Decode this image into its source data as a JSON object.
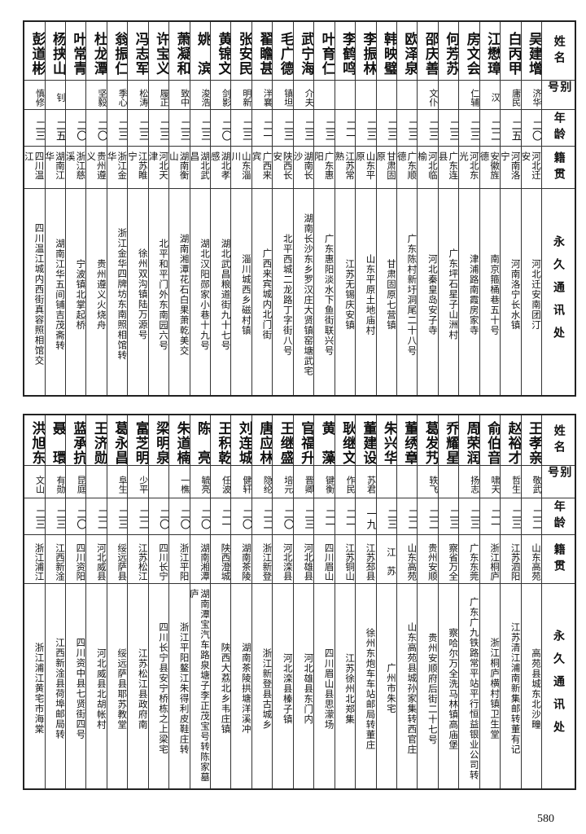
{
  "headers": {
    "name": "姓名",
    "alias": "别号",
    "age": "年龄",
    "hometown": "籍贯",
    "address": "永久通讯处"
  },
  "page_number": "580",
  "top_table": [
    {
      "name": "吴建增",
      "alias": "济华",
      "age": "二〇",
      "hometown": "河北迁安",
      "address": "河北迁安南团汀"
    },
    {
      "name": "白丙甲",
      "alias": "庸民",
      "age": "二五",
      "hometown": "河南洛宁",
      "address": "河南洛宁长水镇"
    },
    {
      "name": "江懋璋",
      "alias": "汉",
      "age": "二二",
      "hometown": "安徽旌德",
      "address": "南京箍桶巷五十号"
    },
    {
      "name": "房文会",
      "alias": "仁辅",
      "age": "二三",
      "hometown": "河北东光",
      "address": "津浦路南霞房家寺"
    },
    {
      "name": "何芳苏",
      "alias": "",
      "age": "二三",
      "hometown": "广东连县",
      "address": "广东坪石星子山洲村"
    },
    {
      "name": "邵庆善",
      "alias": "文仆",
      "age": "二三",
      "hometown": "河北临榆",
      "address": "河北秦皇岛安子寺"
    },
    {
      "name": "欧泽泉",
      "alias": "",
      "age": "二三",
      "hometown": "广东顺德",
      "address": "广东陈村新圩洞尾二十八号"
    },
    {
      "name": "韩映璧",
      "alias": "",
      "age": "二三",
      "hometown": "甘肃固原",
      "address": "甘肃固原七营镇"
    },
    {
      "name": "李振林",
      "alias": "",
      "age": "二三",
      "hometown": "山东平原",
      "address": "山东平原土地庙村"
    },
    {
      "name": "李鹤鸣",
      "alias": "",
      "age": "二一",
      "hometown": "江苏常熟",
      "address": "江苏无锡庆安镇"
    },
    {
      "name": "叶育仁",
      "alias": "",
      "age": "二三",
      "hometown": "广东惠阳",
      "address": "广东惠阳淡水下鱼街联兴号"
    },
    {
      "name": "武宁海",
      "alias": "介夫",
      "age": "二三",
      "hometown": "湖南长沙",
      "address": "湖南长沙东乡罗汉庄大贤镇窑塘武宅"
    },
    {
      "name": "毛广德",
      "alias": "镇坦",
      "age": "二三",
      "hometown": "陕西长安",
      "address": "北平西城二龙路丁字街八号"
    },
    {
      "name": "翟瞻甚",
      "alias": "泮襄",
      "age": "二一",
      "hometown": "广西来宾",
      "address": "广西来宾城内北门街"
    },
    {
      "name": "张安民",
      "alias": "明新",
      "age": "二三",
      "hometown": "山东淄川",
      "address": "淄川城西乡磁村镇"
    },
    {
      "name": "黄锦文",
      "alias": "剑影",
      "age": "二〇",
      "hometown": "湖北孝感",
      "address": "湖北武昌粮道街九十七号"
    },
    {
      "name": "姚　滨",
      "alias": "浚浩",
      "age": "二三",
      "hometown": "湖北武昌",
      "address": "湖北汉阳郧家小巷十九号"
    },
    {
      "name": "萧凝和",
      "alias": "致中",
      "age": "二三",
      "hometown": "湖南衡山",
      "address": "湖南湘潭花石白果萧乾美交"
    },
    {
      "name": "许宝义",
      "alias": "履正",
      "age": "二三",
      "hometown": "河北天津",
      "address": "北平和平门外东南园六号"
    },
    {
      "name": "冯志军",
      "alias": "松涛",
      "age": "二三",
      "hometown": "江苏睢宁",
      "address": "徐州双沟镇陆万源号"
    },
    {
      "name": "翁振仁",
      "alias": "季心",
      "age": "二三",
      "hometown": "浙江金华",
      "address": "浙江金华四牌坊东南照相馆转"
    },
    {
      "name": "杜龙潭",
      "alias": "坚毅",
      "age": "二〇",
      "hometown": "贵州遵义",
      "address": "贵州遵义火烧舟"
    },
    {
      "name": "叶常青",
      "alias": "",
      "age": "二〇",
      "hometown": "浙江慈溪",
      "address": "宁波镇北掌起桥"
    },
    {
      "name": "杨挟山",
      "alias": "钊",
      "age": "二五",
      "hometown": "湖南江华",
      "address": "湖南江华五间铺吉茂斋转"
    },
    {
      "name": "彭道彬",
      "alias": "慎修",
      "age": "二三",
      "hometown": "四川温江",
      "address": "四川温江城内西街真容照相馆交"
    }
  ],
  "bottom_table": [
    {
      "name": "王孝亲",
      "alias": "敬武",
      "age": "二二",
      "hometown": "山东高苑",
      "address": "高苑县城东北沙疃"
    },
    {
      "name": "赵裕才",
      "alias": "哲生",
      "age": "二三",
      "hometown": "江苏泗阳",
      "address": "江苏清江浦南新集邮转董有记"
    },
    {
      "name": "俞伯音",
      "alias": "啸天",
      "age": "二一",
      "hometown": "浙江桐庐",
      "address": "浙江桐庐横村镇卫生堂"
    },
    {
      "name": "周荣润",
      "alias": "扬志",
      "age": "二三",
      "hometown": "广东东莞",
      "address": "广东广九铁路常平站平行恒益银业公司转"
    },
    {
      "name": "乔耀星",
      "alias": "",
      "age": "二三",
      "hometown": "察省万全",
      "address": "察哈尔万全洗马林镇高庙堡"
    },
    {
      "name": "葛发艿",
      "alias": "轶飞",
      "age": "二二",
      "hometown": "贵州安顺",
      "address": "贵州安顺府后街二十七号"
    },
    {
      "name": "董绣章",
      "alias": "",
      "age": "二二",
      "hometown": "山东高苑",
      "address": "山东高苑县城孙家集转西官庄"
    },
    {
      "name": "朱兴华",
      "alias": "",
      "age": "二三",
      "hometown": "江　苏",
      "address": "广州市朱宅"
    },
    {
      "name": "董建设",
      "alias": "苏君",
      "age": "一九",
      "hometown": "江苏邳县",
      "address": "徐州东炮车车站邮局转董庄"
    },
    {
      "name": "耿继文",
      "alias": "作民",
      "age": "二一",
      "hometown": "江苏铜山",
      "address": "江苏徐州北郑集"
    },
    {
      "name": "黄　藻",
      "alias": "键衡",
      "age": "二一",
      "hometown": "四川眉山",
      "address": "四川眉山县思濛场"
    },
    {
      "name": "官福升",
      "alias": "晋卿",
      "age": "二三",
      "hometown": "河北雄县",
      "address": "河北雄县东门内"
    },
    {
      "name": "王继盛",
      "alias": "培元",
      "age": "二〇",
      "hometown": "河北滦县",
      "address": "河北滦县榛子镇"
    },
    {
      "name": "唐应林",
      "alias": "隐纶",
      "age": "二二",
      "hometown": "浙江新登",
      "address": "浙江新登县古城乡"
    },
    {
      "name": "刘连城",
      "alias": "健轩",
      "age": "二〇",
      "hometown": "湖南茶陵",
      "address": "湖南茶陵拱塘洋溪冲"
    },
    {
      "name": "王积乾",
      "alias": "任波",
      "age": "二一",
      "hometown": "陕西澄城",
      "address": "陕西大荔北乡韦庄镇"
    },
    {
      "name": "陈　亮",
      "alias": "毓亮",
      "age": "二〇",
      "hometown": "湖南湘潭",
      "address": "湖南潭宝汽车路泉塘子李正茂宝号转陈家墓庐"
    },
    {
      "name": "朱道楠",
      "alias": "一樵",
      "age": "二〇",
      "hometown": "浙江平阳",
      "address": "浙江平阳鳌江朱得利皮鞋庄转"
    },
    {
      "name": "梁明泉",
      "alias": "",
      "age": "二〇",
      "hometown": "四川长宁",
      "address": "四川长宁县安宁桥栋之上梁宅"
    },
    {
      "name": "富芝明",
      "alias": "少平",
      "age": "二二",
      "hometown": "江苏松江",
      "address": "江苏松江县政府南"
    },
    {
      "name": "葛永昌",
      "alias": "阜生",
      "age": "二三",
      "hometown": "绥远萨县",
      "address": "绥远萨县耶苏教堂"
    },
    {
      "name": "王济勋",
      "alias": "",
      "age": "二二",
      "hometown": "河北威县",
      "address": "河北威县北胡帐村"
    },
    {
      "name": "蓝承抗",
      "alias": "昆庭",
      "age": "二〇",
      "hometown": "四川资阳",
      "address": "四川资中县七贤街四号"
    },
    {
      "name": "聂　環",
      "alias": "有勋",
      "age": "二三",
      "hometown": "江西新淦",
      "address": "江西新淦县荷埠邮局转"
    },
    {
      "name": "洪旭东",
      "alias": "文山",
      "age": "二三",
      "hometown": "浙江浦江",
      "address": "浙江浦江黄宅市海棠"
    }
  ]
}
